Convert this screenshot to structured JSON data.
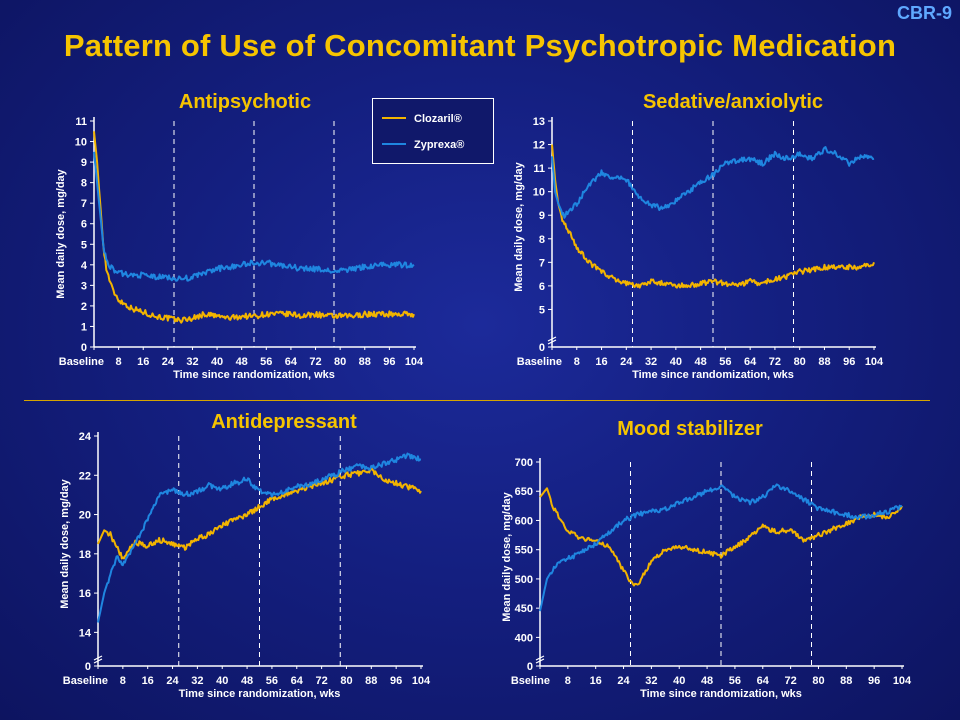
{
  "slide": {
    "id": "CBR-9",
    "title": "Pattern of Use of Concomitant Psychotropic Medication"
  },
  "legend": {
    "items": [
      {
        "label": "Clozaril®",
        "color": "#f2b400"
      },
      {
        "label": "Zyprexa®",
        "color": "#1f86e0"
      }
    ]
  },
  "colors": {
    "clozaril": "#f2b400",
    "zyprexa": "#1f86e0",
    "axis": "#ffffff",
    "title": "#f6c400"
  },
  "chart_data": [
    {
      "type": "line",
      "title": "Antipsychotic",
      "xlabel": "Time since randomization, wks",
      "ylabel": "Mean daily dose, mg/day",
      "x_ticks": [
        "Baseline",
        "8",
        "16",
        "24",
        "32",
        "40",
        "48",
        "56",
        "64",
        "72",
        "80",
        "88",
        "96",
        "104"
      ],
      "y_ticks": [
        "0",
        "1",
        "2",
        "3",
        "4",
        "5",
        "6",
        "7",
        "8",
        "9",
        "10",
        "11"
      ],
      "ylim": [
        0,
        11
      ],
      "xlim": [
        0,
        104
      ],
      "axis_break": false,
      "vlines": [
        26,
        52,
        78
      ],
      "x": [
        0,
        1,
        2,
        3,
        4,
        6,
        8,
        12,
        16,
        20,
        24,
        28,
        32,
        36,
        40,
        44,
        48,
        52,
        56,
        60,
        64,
        68,
        72,
        76,
        80,
        84,
        88,
        92,
        96,
        100,
        104
      ],
      "series": [
        {
          "name": "Clozaril®",
          "values": [
            10.5,
            9.0,
            7.0,
            5.0,
            3.8,
            2.8,
            2.3,
            1.9,
            1.7,
            1.5,
            1.4,
            1.3,
            1.4,
            1.6,
            1.5,
            1.4,
            1.5,
            1.5,
            1.6,
            1.6,
            1.6,
            1.5,
            1.6,
            1.5,
            1.5,
            1.5,
            1.6,
            1.6,
            1.6,
            1.6,
            1.6
          ]
        },
        {
          "name": "Zyprexa®",
          "values": [
            9.5,
            8.0,
            6.5,
            5.0,
            4.2,
            3.8,
            3.6,
            3.5,
            3.5,
            3.4,
            3.4,
            3.3,
            3.4,
            3.6,
            3.8,
            3.9,
            4.0,
            4.1,
            4.1,
            4.0,
            3.9,
            3.8,
            3.8,
            3.7,
            3.7,
            3.8,
            3.9,
            4.0,
            4.0,
            4.0,
            4.0
          ]
        }
      ]
    },
    {
      "type": "line",
      "title": "Sedative/anxiolytic",
      "xlabel": "Time since randomization, wks",
      "ylabel": "Mean daily dose, mg/day",
      "x_ticks": [
        "Baseline",
        "8",
        "16",
        "24",
        "32",
        "40",
        "48",
        "56",
        "64",
        "72",
        "80",
        "88",
        "96",
        "104"
      ],
      "y_ticks": [
        "0",
        "5",
        "6",
        "7",
        "8",
        "9",
        "10",
        "11",
        "12",
        "13"
      ],
      "ylim": [
        4,
        13
      ],
      "xlim": [
        0,
        104
      ],
      "axis_break": true,
      "vlines": [
        26,
        52,
        78
      ],
      "x": [
        0,
        1,
        2,
        3,
        4,
        6,
        8,
        12,
        16,
        20,
        24,
        28,
        32,
        36,
        40,
        44,
        48,
        52,
        56,
        60,
        64,
        68,
        72,
        76,
        80,
        84,
        88,
        92,
        96,
        100,
        104
      ],
      "series": [
        {
          "name": "Clozaril®",
          "values": [
            12.0,
            10.5,
            9.5,
            9.0,
            8.6,
            8.2,
            7.6,
            7.0,
            6.6,
            6.3,
            6.1,
            6.0,
            6.2,
            6.1,
            6.0,
            6.0,
            6.1,
            6.2,
            6.1,
            6.0,
            6.2,
            6.1,
            6.3,
            6.4,
            6.6,
            6.7,
            6.8,
            6.8,
            6.8,
            6.8,
            7.0
          ]
        },
        {
          "name": "Zyprexa®",
          "values": [
            11.5,
            10.0,
            9.5,
            9.2,
            9.0,
            9.2,
            9.5,
            10.3,
            10.8,
            10.6,
            10.5,
            9.8,
            9.4,
            9.3,
            9.6,
            10.0,
            10.4,
            10.7,
            11.2,
            11.3,
            11.4,
            11.2,
            11.6,
            11.4,
            11.6,
            11.4,
            11.8,
            11.6,
            11.2,
            11.5,
            11.4
          ]
        }
      ]
    },
    {
      "type": "line",
      "title": "Antidepressant",
      "xlabel": "Time since randomization, wks",
      "ylabel": "Mean daily dose, mg/day",
      "x_ticks": [
        "Baseline",
        "8",
        "16",
        "24",
        "32",
        "40",
        "48",
        "56",
        "64",
        "72",
        "80",
        "88",
        "96",
        "104"
      ],
      "y_ticks": [
        "0",
        "14",
        "16",
        "18",
        "20",
        "22",
        "24"
      ],
      "ylim": [
        13,
        24
      ],
      "xlim": [
        0,
        104
      ],
      "axis_break": true,
      "vlines": [
        26,
        52,
        78
      ],
      "x": [
        0,
        2,
        4,
        6,
        8,
        12,
        16,
        20,
        24,
        28,
        32,
        36,
        40,
        44,
        48,
        52,
        56,
        60,
        64,
        68,
        72,
        76,
        80,
        84,
        88,
        92,
        96,
        100,
        104
      ],
      "series": [
        {
          "name": "Clozaril®",
          "values": [
            18.5,
            19.2,
            19.0,
            18.3,
            17.8,
            18.6,
            18.4,
            18.7,
            18.5,
            18.3,
            18.8,
            19.0,
            19.5,
            19.7,
            20.0,
            20.4,
            20.8,
            21.0,
            21.2,
            21.4,
            21.6,
            21.8,
            22.0,
            22.1,
            22.3,
            21.8,
            21.6,
            21.4,
            21.2
          ]
        },
        {
          "name": "Zyprexa®",
          "values": [
            14.5,
            16.0,
            17.0,
            17.8,
            17.5,
            18.5,
            19.8,
            21.0,
            21.3,
            21.0,
            21.2,
            21.5,
            21.3,
            21.6,
            21.8,
            21.2,
            21.0,
            21.2,
            21.4,
            21.5,
            21.8,
            22.0,
            22.3,
            22.5,
            22.4,
            22.6,
            22.8,
            23.0,
            22.8
          ]
        }
      ]
    },
    {
      "type": "line",
      "title": "Mood stabilizer",
      "xlabel": "Time since randomization, wks",
      "ylabel": "Mean daily dose, mg/day",
      "x_ticks": [
        "Bseline",
        "8",
        "16",
        "24",
        "32",
        "40",
        "48",
        "56",
        "64",
        "72",
        "80",
        "88",
        "96",
        "104"
      ],
      "y_ticks": [
        "0",
        "400",
        "450",
        "500",
        "550",
        "600",
        "650",
        "700"
      ],
      "ylim": [
        375,
        700
      ],
      "xlim": [
        0,
        104
      ],
      "axis_break": true,
      "vlines": [
        26,
        52,
        78
      ],
      "x": [
        0,
        2,
        4,
        6,
        8,
        12,
        16,
        20,
        24,
        26,
        28,
        32,
        36,
        40,
        44,
        48,
        52,
        56,
        60,
        64,
        68,
        72,
        76,
        80,
        84,
        88,
        92,
        96,
        100,
        104
      ],
      "series": [
        {
          "name": "Clozaril®",
          "values": [
            640,
            655,
            620,
            600,
            580,
            570,
            565,
            555,
            515,
            495,
            490,
            530,
            550,
            555,
            550,
            545,
            540,
            555,
            570,
            590,
            580,
            585,
            565,
            575,
            585,
            595,
            605,
            610,
            605,
            625
          ]
        },
        {
          "name": "Zyprexa®",
          "values": [
            445,
            500,
            520,
            530,
            535,
            545,
            560,
            580,
            600,
            605,
            610,
            615,
            620,
            630,
            640,
            650,
            660,
            640,
            630,
            640,
            660,
            650,
            635,
            620,
            615,
            610,
            605,
            610,
            615,
            625
          ]
        }
      ]
    }
  ]
}
